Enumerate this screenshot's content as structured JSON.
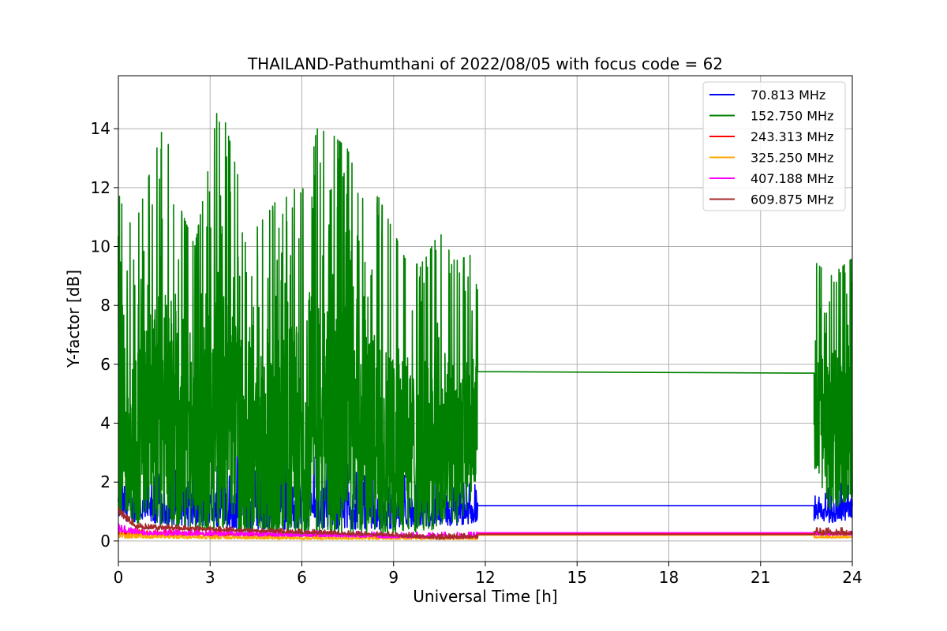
{
  "chart_data": {
    "type": "line",
    "title": "THAILAND-Pathumthani of 2022/08/05 with focus code = 62",
    "xlabel": "Universal Time [h]",
    "ylabel": "Y-factor [dB]",
    "xlim": [
      0,
      24
    ],
    "ylim": [
      -0.7,
      15.8
    ],
    "xticks": [
      0,
      3,
      6,
      9,
      12,
      15,
      18,
      21,
      24
    ],
    "yticks": [
      0,
      2,
      4,
      6,
      8,
      10,
      12,
      14
    ],
    "grid": true,
    "legend_position": "top-right",
    "segments": [
      [
        0,
        11.75
      ],
      [
        22.75,
        24
      ]
    ],
    "series": [
      {
        "name": " 70.813 MHz",
        "color": "#0000ff",
        "envelope": [
          [
            0,
            0.7,
            2.3
          ],
          [
            1,
            0.6,
            2.1
          ],
          [
            2,
            0.5,
            2.6
          ],
          [
            3,
            0.5,
            2.4
          ],
          [
            4,
            0.4,
            3.0
          ],
          [
            5,
            0.4,
            2.4
          ],
          [
            6,
            0.4,
            3.0
          ],
          [
            7,
            0.4,
            2.6
          ],
          [
            8,
            0.4,
            2.6
          ],
          [
            9,
            0.4,
            2.3
          ],
          [
            10,
            0.5,
            2.1
          ],
          [
            11,
            0.5,
            2.0
          ],
          [
            11.75,
            0.6,
            1.9
          ],
          [
            22.75,
            0.7,
            1.6
          ],
          [
            23.5,
            0.6,
            1.9
          ],
          [
            24,
            0.8,
            2.1
          ]
        ],
        "gap_value": 1.2
      },
      {
        "name": "152.750 MHz",
        "color": "#008000",
        "envelope": [
          [
            0,
            1.0,
            11.8
          ],
          [
            0.5,
            0.5,
            10.5
          ],
          [
            1,
            0.8,
            12.4
          ],
          [
            1.5,
            0.4,
            14.2
          ],
          [
            2,
            0.4,
            11.4
          ],
          [
            2.5,
            0.3,
            10.0
          ],
          [
            3,
            0.4,
            13.0
          ],
          [
            3.3,
            0.3,
            15.1
          ],
          [
            4,
            0.2,
            12.0
          ],
          [
            4.5,
            0.2,
            10.6
          ],
          [
            5,
            0.2,
            11.3
          ],
          [
            5.5,
            0.2,
            12.1
          ],
          [
            6,
            0.2,
            11.8
          ],
          [
            6.5,
            0.2,
            14.0
          ],
          [
            7,
            0.2,
            13.8
          ],
          [
            7.5,
            0.2,
            13.3
          ],
          [
            8,
            0.2,
            11.6
          ],
          [
            8.5,
            0.2,
            11.7
          ],
          [
            9,
            0.2,
            10.5
          ],
          [
            9.5,
            0.3,
            9.3
          ],
          [
            10,
            0.3,
            9.5
          ],
          [
            10.5,
            0.4,
            10.5
          ],
          [
            11,
            0.5,
            9.5
          ],
          [
            11.5,
            1.0,
            9.7
          ],
          [
            11.75,
            2.5,
            8.5
          ],
          [
            22.75,
            2.5,
            9.5
          ],
          [
            23.3,
            1.0,
            9.0
          ],
          [
            24,
            1.5,
            9.6
          ]
        ],
        "gap_value": 5.75,
        "gap_end_value": 5.7
      },
      {
        "name": "243.313 MHz",
        "color": "#ff0000",
        "envelope": [
          [
            0,
            0.2,
            0.4
          ],
          [
            6,
            0.15,
            0.3
          ],
          [
            11.75,
            0.1,
            0.2
          ],
          [
            22.75,
            0.2,
            0.3
          ],
          [
            24,
            0.2,
            0.3
          ]
        ],
        "gap_value": 0.25
      },
      {
        "name": "325.250 MHz",
        "color": "#ffa500",
        "envelope": [
          [
            0,
            0.1,
            0.3
          ],
          [
            6,
            0.05,
            0.2
          ],
          [
            11.75,
            0.05,
            0.2
          ],
          [
            22.75,
            0.1,
            0.2
          ],
          [
            24,
            0.1,
            0.2
          ]
        ],
        "gap_value": 0.2
      },
      {
        "name": "407.188 MHz",
        "color": "#ff00ff",
        "envelope": [
          [
            0,
            0.3,
            0.6
          ],
          [
            1,
            0.2,
            0.4
          ],
          [
            6,
            0.15,
            0.35
          ],
          [
            9,
            0.1,
            0.3
          ],
          [
            11.75,
            0.1,
            0.3
          ],
          [
            22.75,
            0.2,
            0.35
          ],
          [
            24,
            0.2,
            0.35
          ]
        ],
        "gap_value": 0.28
      },
      {
        "name": "609.875 MHz",
        "color": "#a52a2a",
        "envelope": [
          [
            0,
            0.9,
            1.2
          ],
          [
            0.6,
            0.4,
            0.6
          ],
          [
            3,
            0.35,
            0.5
          ],
          [
            6,
            0.25,
            0.4
          ],
          [
            9,
            0.15,
            0.3
          ],
          [
            10.5,
            0.05,
            0.25
          ],
          [
            11.75,
            0.1,
            0.25
          ],
          [
            22.75,
            0.2,
            0.45
          ],
          [
            24,
            0.2,
            0.45
          ]
        ],
        "gap_value": 0.22
      }
    ]
  }
}
